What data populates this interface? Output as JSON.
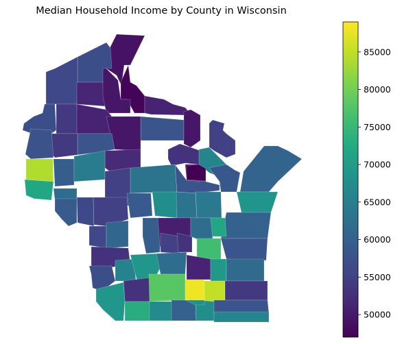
{
  "title": "Median Household Income by County in Wisconsin",
  "colormap": "viridis",
  "colorbar": {
    "min": 47000,
    "max": 89000,
    "ticks": [
      {
        "value": 50000,
        "label": "50000"
      },
      {
        "value": 55000,
        "label": "55000"
      },
      {
        "value": 60000,
        "label": "60000"
      },
      {
        "value": 65000,
        "label": "65000"
      },
      {
        "value": 70000,
        "label": "70000"
      },
      {
        "value": 75000,
        "label": "75000"
      },
      {
        "value": 80000,
        "label": "80000"
      },
      {
        "value": 85000,
        "label": "85000"
      }
    ]
  },
  "counties": [
    {
      "v": 49000
    },
    {
      "v": 57000
    },
    {
      "v": 47500
    },
    {
      "v": 56000
    },
    {
      "v": 51500
    },
    {
      "v": 49500
    },
    {
      "v": 51000
    },
    {
      "v": 58000
    },
    {
      "v": 49500
    },
    {
      "v": 55000
    },
    {
      "v": 57000
    },
    {
      "v": 54000
    },
    {
      "v": 51000
    },
    {
      "v": 49500
    },
    {
      "v": 58000
    },
    {
      "v": 54000
    },
    {
      "v": 57500
    },
    {
      "v": 52000
    },
    {
      "v": 48000
    },
    {
      "v": 53000
    },
    {
      "v": 60500
    },
    {
      "v": 84000
    },
    {
      "v": 72000
    },
    {
      "v": 59500
    },
    {
      "v": 64500
    },
    {
      "v": 63000
    },
    {
      "v": 55000
    },
    {
      "v": 66000
    },
    {
      "v": 58000
    },
    {
      "v": 58500
    },
    {
      "v": 47000
    },
    {
      "v": 62000
    },
    {
      "v": 68500
    },
    {
      "v": 64000
    },
    {
      "v": 67500
    },
    {
      "v": 63000
    },
    {
      "v": 59000
    },
    {
      "v": 56000
    },
    {
      "v": 55000
    },
    {
      "v": 59000
    },
    {
      "v": 56000
    },
    {
      "v": 61000
    },
    {
      "v": 59500
    },
    {
      "v": 50500
    },
    {
      "v": 55000
    },
    {
      "v": 53000
    },
    {
      "v": 60000
    },
    {
      "v": 72000
    },
    {
      "v": 62000
    },
    {
      "v": 76000
    },
    {
      "v": 58000
    },
    {
      "v": 53000
    },
    {
      "v": 57000
    },
    {
      "v": 65500
    },
    {
      "v": 69000
    },
    {
      "v": 53000
    },
    {
      "v": 62000
    },
    {
      "v": 51000
    },
    {
      "v": 69500
    },
    {
      "v": 61500
    },
    {
      "v": 78000
    },
    {
      "v": 85000
    },
    {
      "v": 54000
    },
    {
      "v": 88000
    },
    {
      "v": 69000
    },
    {
      "v": 73000
    },
    {
      "v": 67000
    },
    {
      "v": 60000
    },
    {
      "v": 67500
    },
    {
      "v": 58000
    },
    {
      "v": 66000
    },
    {
      "v": 68000
    }
  ]
}
